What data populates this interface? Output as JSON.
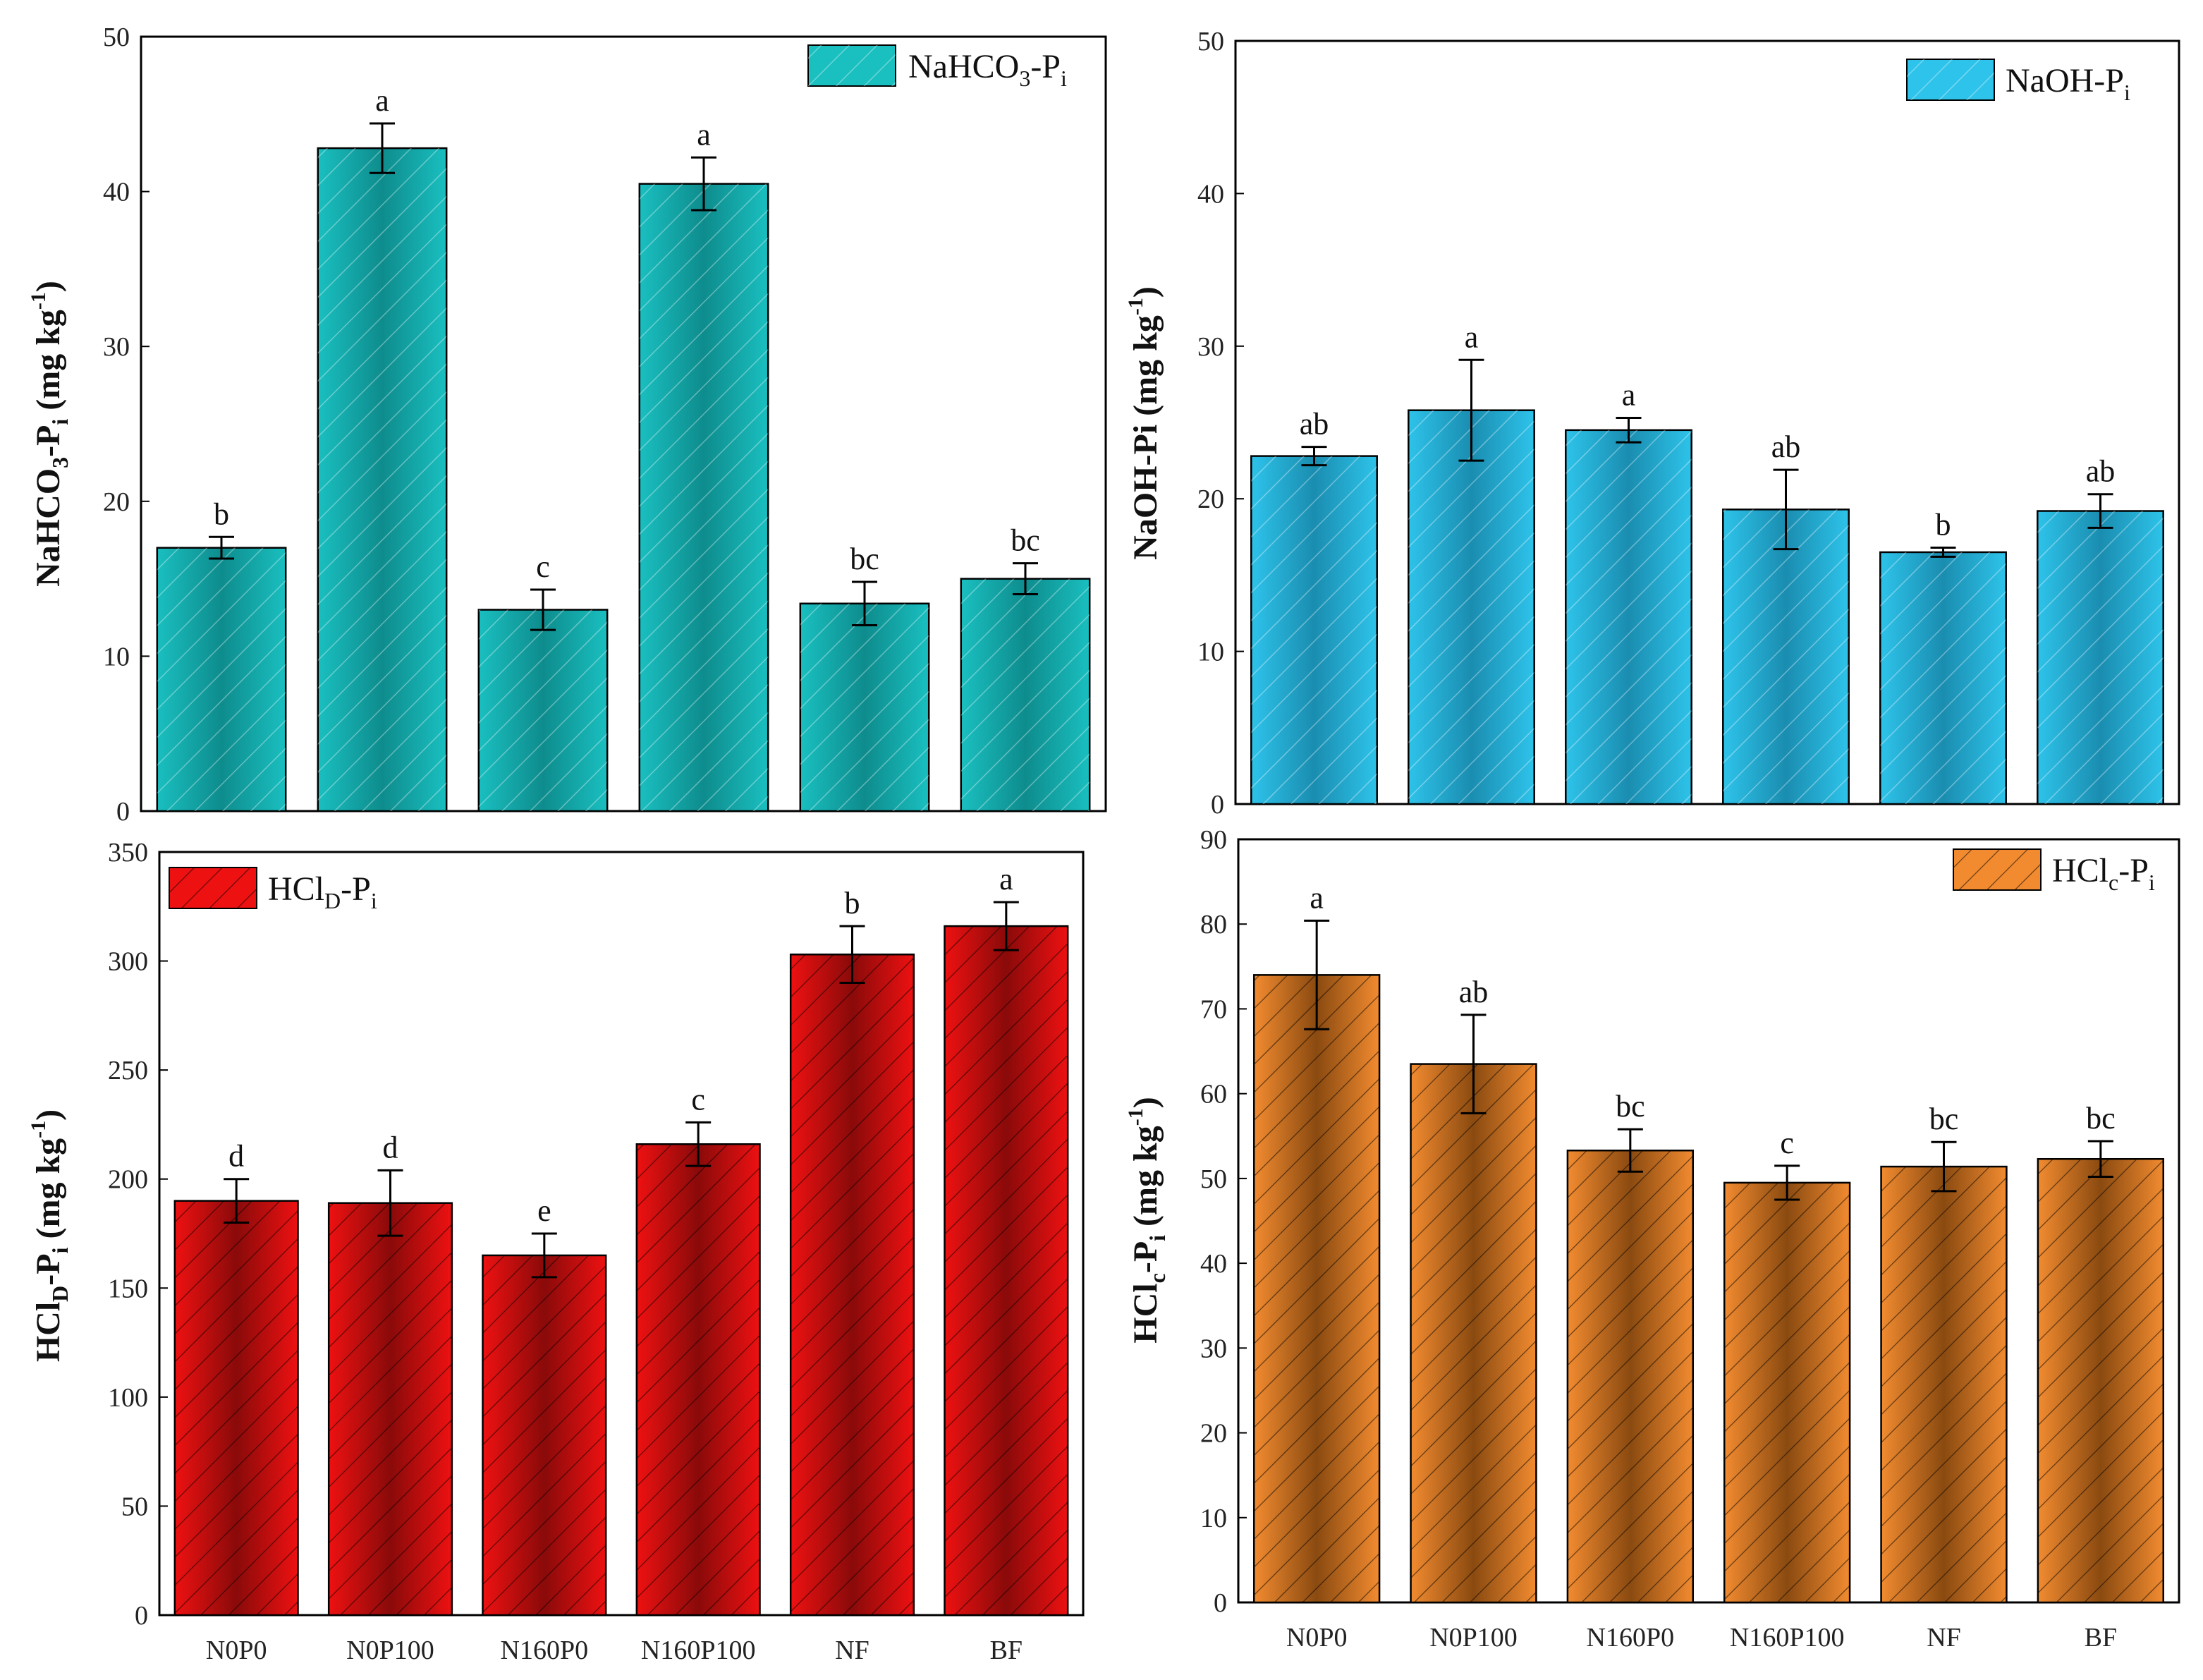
{
  "chart_data": [
    {
      "type": "bar",
      "legend": {
        "base": "NaHCO",
        "sub1": "3",
        "mid": "-P",
        "sub2": "i",
        "color": "#1ABFC0",
        "placement": "top-right"
      },
      "ylabel": {
        "base": "NaHCO",
        "sub1": "3",
        "mid": "-P",
        "sub2": "i",
        "units": " (mg kg",
        "sup": "-1",
        "close": ")"
      },
      "categories": [
        "N0P0",
        "N0P100",
        "N160P0",
        "N160P100",
        "NF",
        "BF"
      ],
      "values": [
        17.0,
        42.8,
        13.0,
        40.5,
        13.4,
        15.0
      ],
      "errors": [
        0.7,
        1.6,
        1.3,
        1.7,
        1.4,
        1.0
      ],
      "significance": [
        "b",
        "a",
        "c",
        "a",
        "bc",
        "bc"
      ],
      "ylim": [
        0,
        50
      ],
      "yticks": [
        0,
        10,
        20,
        30,
        40,
        50
      ],
      "show_x_labels": false,
      "color": "#1ABFC0",
      "edge_color": "#0E8C8D"
    },
    {
      "type": "bar",
      "legend": {
        "base": "NaOH-P",
        "sub1": "",
        "mid": "",
        "sub2": "i",
        "color": "#2EC3EA",
        "placement": "top-right"
      },
      "ylabel": {
        "base": "NaOH-Pi",
        "sub1": "",
        "mid": "",
        "sub2": "",
        "units": " (mg kg",
        "sup": "-1",
        "close": ")"
      },
      "categories": [
        "N0P0",
        "N0P100",
        "N160P0",
        "N160P100",
        "NF",
        "BF"
      ],
      "values": [
        22.8,
        25.8,
        24.5,
        19.3,
        16.5,
        19.2
      ],
      "errors": [
        0.6,
        3.3,
        0.8,
        2.6,
        0.3,
        1.1
      ],
      "significance": [
        "ab",
        "a",
        "a",
        "ab",
        "b",
        "ab"
      ],
      "ylim": [
        0,
        50
      ],
      "yticks": [
        0,
        10,
        20,
        30,
        40,
        50
      ],
      "show_x_labels": false,
      "color": "#2EC3EA",
      "edge_color": "#1A8DB0"
    },
    {
      "type": "bar",
      "legend": {
        "base": "HCl",
        "sub1": "D",
        "mid": "-P",
        "sub2": "i",
        "color": "#EE1111",
        "placement": "top-left"
      },
      "ylabel": {
        "base": "HCl",
        "sub1": "D",
        "mid": "-P",
        "sub2": "i",
        "units": " (mg kg",
        "sup": "-1",
        "close": ")"
      },
      "categories": [
        "N0P0",
        "N0P100",
        "N160P0",
        "N160P100",
        "NF",
        "BF"
      ],
      "values": [
        190,
        189,
        165,
        216,
        303,
        316
      ],
      "errors": [
        10,
        15,
        10,
        10,
        13,
        11
      ],
      "significance": [
        "d",
        "d",
        "e",
        "c",
        "b",
        "a"
      ],
      "ylim": [
        0,
        350
      ],
      "yticks": [
        0,
        50,
        100,
        150,
        200,
        250,
        300,
        350
      ],
      "show_x_labels": true,
      "color": "#EE1111",
      "edge_color": "#8A0A0A"
    },
    {
      "type": "bar",
      "legend": {
        "base": "HCl",
        "sub1": "c",
        "mid": "-P",
        "sub2": "i",
        "color": "#F28B30",
        "placement": "top-right"
      },
      "ylabel": {
        "base": "HCl",
        "sub1": "c",
        "mid": "-P",
        "sub2": "i",
        "units": " (mg kg",
        "sup": "-1",
        "close": ")"
      },
      "categories": [
        "N0P0",
        "N0P100",
        "N160P0",
        "N160P100",
        "NF",
        "BF"
      ],
      "values": [
        74.0,
        63.5,
        53.3,
        49.5,
        51.4,
        52.3
      ],
      "errors": [
        6.4,
        5.8,
        2.5,
        2.0,
        2.9,
        2.1
      ],
      "significance": [
        "a",
        "ab",
        "bc",
        "c",
        "bc",
        "bc"
      ],
      "ylim": [
        0,
        90
      ],
      "yticks": [
        0,
        10,
        20,
        30,
        40,
        50,
        60,
        70,
        80,
        90
      ],
      "show_x_labels": true,
      "color": "#F28B30",
      "edge_color": "#8A4A10"
    }
  ]
}
